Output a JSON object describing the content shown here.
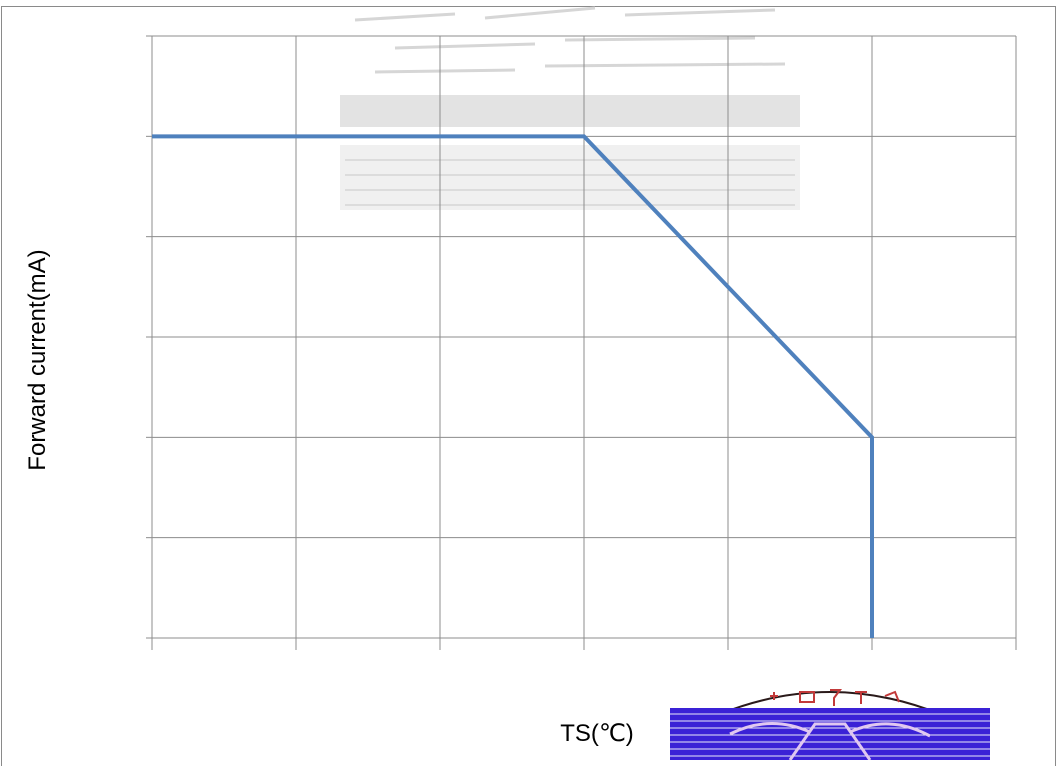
{
  "chart_data": {
    "type": "line",
    "title": "",
    "xlabel": "TS(℃)",
    "ylabel": "Forward current(mA)",
    "x_grid_divisions": 6,
    "y_grid_divisions": 6,
    "grid": true,
    "legend": "none",
    "series": [
      {
        "color": "#4f81bd",
        "points": [
          {
            "x": 0,
            "y": 5
          },
          {
            "x": 3,
            "y": 5
          },
          {
            "x": 4,
            "y": 3.5
          },
          {
            "x": 5,
            "y": 2
          },
          {
            "x": 5,
            "y": 0
          }
        ]
      }
    ]
  },
  "colors": {
    "gridline": "#8c8c8c",
    "series": "#4f81bd",
    "stamp_red": "#c0392b",
    "stamp_blue": "#3b22d6"
  },
  "decorations": {
    "stamp": "company-seal-icon"
  }
}
